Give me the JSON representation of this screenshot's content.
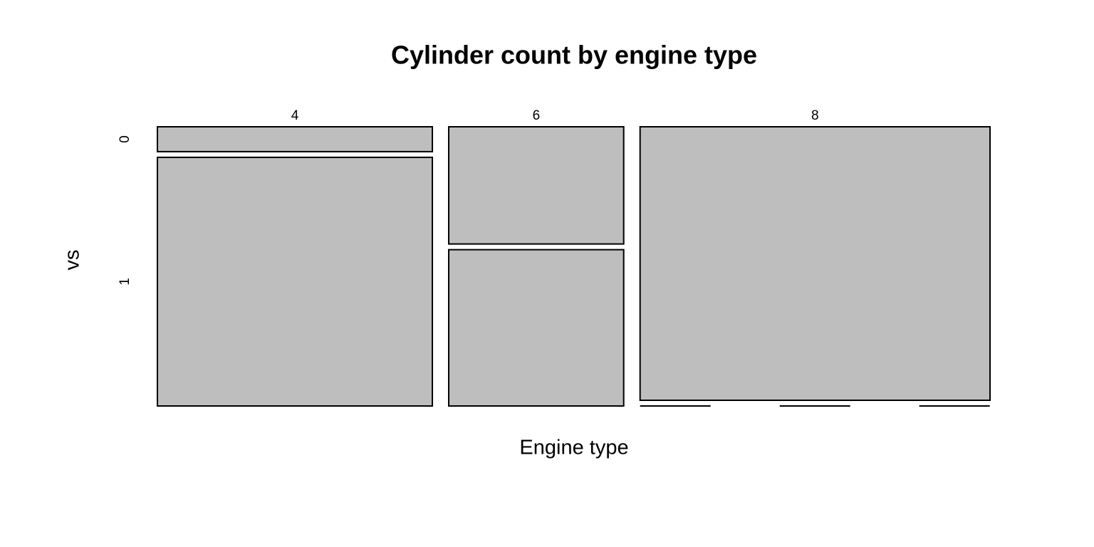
{
  "chart_data": {
    "type": "mosaic",
    "title": "Cylinder count by engine type",
    "xlabel": "Engine type",
    "ylabel": "vs",
    "categories": [
      "4",
      "6",
      "8"
    ],
    "series": [
      {
        "name": "0",
        "color": "#bebebe",
        "values": [
          1,
          3,
          14
        ]
      },
      {
        "name": "1",
        "color": "#bebebe",
        "values": [
          10,
          4,
          0
        ]
      }
    ]
  }
}
